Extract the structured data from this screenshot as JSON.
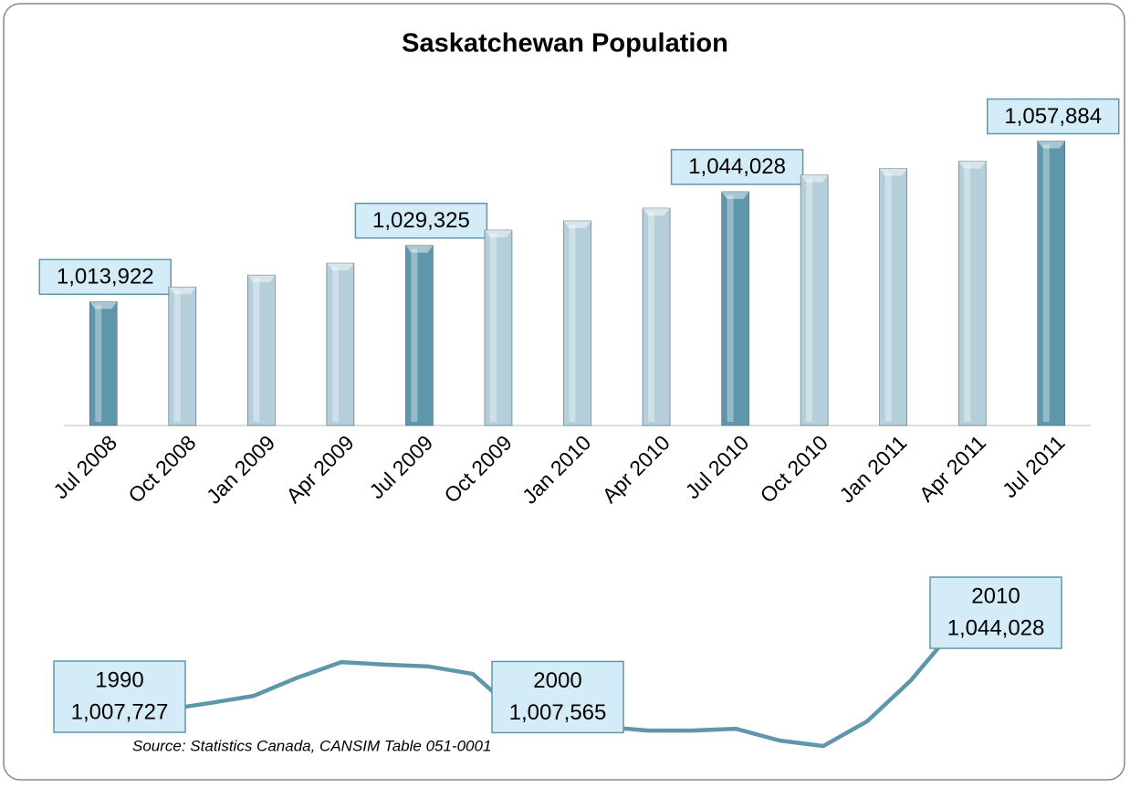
{
  "chart_data": [
    {
      "type": "bar",
      "title": "Saskatchewan Population",
      "categories": [
        "Jul 2008",
        "Oct 2008",
        "Jan 2009",
        "Apr 2009",
        "Jul 2009",
        "Oct 2009",
        "Jan 2010",
        "Apr 2010",
        "Jul 2010",
        "Oct 2010",
        "Jan 2011",
        "Apr 2011",
        "Jul 2011"
      ],
      "values": [
        1013922,
        1017940,
        1021200,
        1024470,
        1029325,
        1033500,
        1036000,
        1039500,
        1044028,
        1048600,
        1050350,
        1052360,
        1057884
      ],
      "value_labels": [
        "1,013,922",
        null,
        null,
        null,
        "1,029,325",
        null,
        null,
        null,
        "1,044,028",
        null,
        null,
        null,
        "1,057,884"
      ],
      "colors": [
        "#5f97aa",
        "#b4cfda",
        "#b4cfda",
        "#b4cfda",
        "#5f97aa",
        "#b4cfda",
        "#b4cfda",
        "#b4cfda",
        "#5f97aa",
        "#b4cfda",
        "#b4cfda",
        "#b4cfda",
        "#5f97aa"
      ],
      "ylim": [
        980000,
        1064000
      ]
    },
    {
      "type": "line",
      "categories": [
        "1990",
        null,
        null,
        null,
        null,
        null,
        null,
        null,
        null,
        null,
        "2000",
        null,
        null,
        null,
        null,
        null,
        null,
        null,
        null,
        null,
        "2010"
      ],
      "values": [
        1007727,
        1008100,
        1008900,
        1011700,
        1014800,
        1022700,
        1029400,
        1028300,
        1027500,
        1024300,
        1007565,
        1003800,
        1001400,
        999800,
        999800,
        1000600,
        995500,
        993100,
        1003800,
        1021500,
        1044028
      ],
      "value_labels": [
        "1,007,727",
        null,
        null,
        null,
        null,
        null,
        null,
        null,
        null,
        null,
        "1,007,565",
        null,
        null,
        null,
        null,
        null,
        null,
        null,
        null,
        null,
        "1,044,028"
      ],
      "color": "#5f97aa",
      "ylim": [
        988000,
        1063000
      ]
    }
  ],
  "source": "Source: Statistics Canada,  CANSIM Table 051-0001"
}
